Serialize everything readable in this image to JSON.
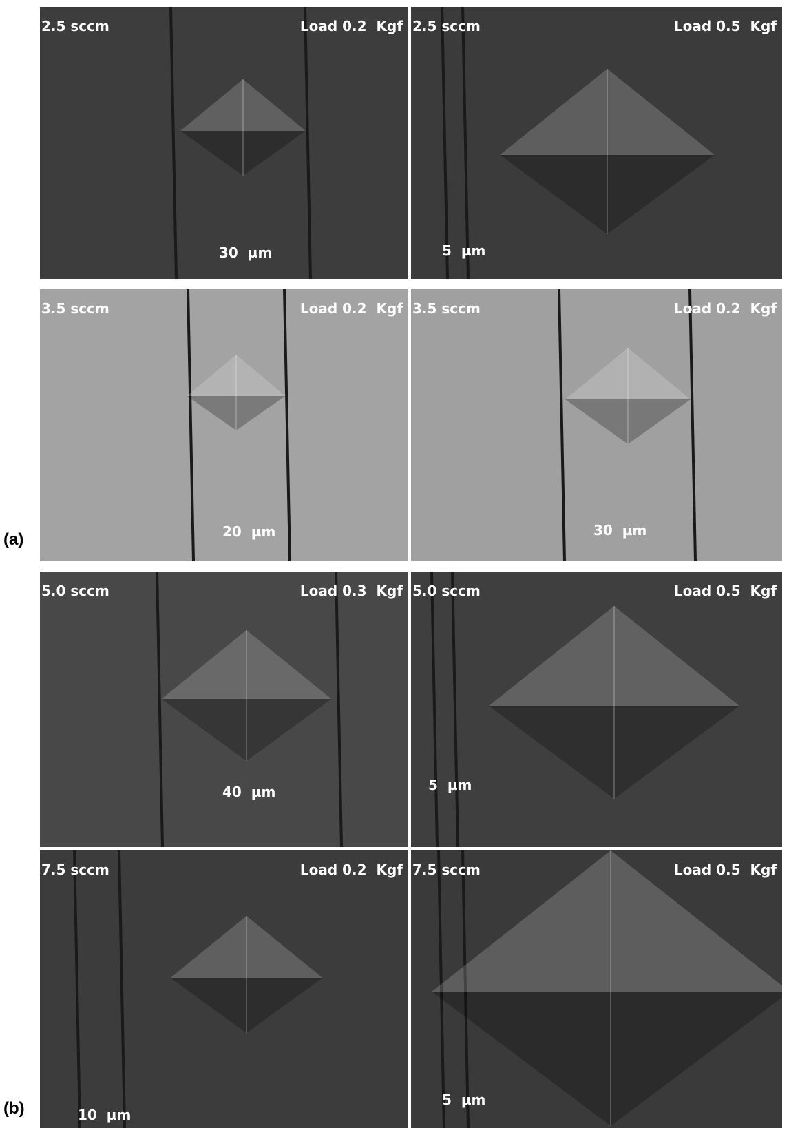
{
  "panels": [
    {
      "label": "(a)",
      "images": [
        {
          "sccm": "2.5 sccm",
          "load": "Load 0.2  Kgf",
          "scale": "30  µm"
        },
        {
          "sccm": "2.5 sccm",
          "load": "Load 0.5  Kgf",
          "scale": "5  µm"
        },
        {
          "sccm": "3.5 sccm",
          "load": "Load 0.2  Kgf",
          "scale": "20  µm"
        },
        {
          "sccm": "3.5 sccm",
          "load": "Load 0.2  Kgf",
          "scale": "30  µm"
        }
      ]
    },
    {
      "label": "(b)",
      "images": [
        {
          "sccm": "5.0 sccm",
          "load": "Load 0.3  Kgf",
          "scale": "40  µm"
        },
        {
          "sccm": "5.0 sccm",
          "load": "Load 0.5  Kgf",
          "scale": "5  µm"
        },
        {
          "sccm": "7.5 sccm",
          "load": "Load 0.2  Kgf",
          "scale": "10  µm"
        },
        {
          "sccm": "7.5 sccm",
          "load": "Load 0.5  Kgf",
          "scale": "5  µm"
        }
      ]
    }
  ]
}
